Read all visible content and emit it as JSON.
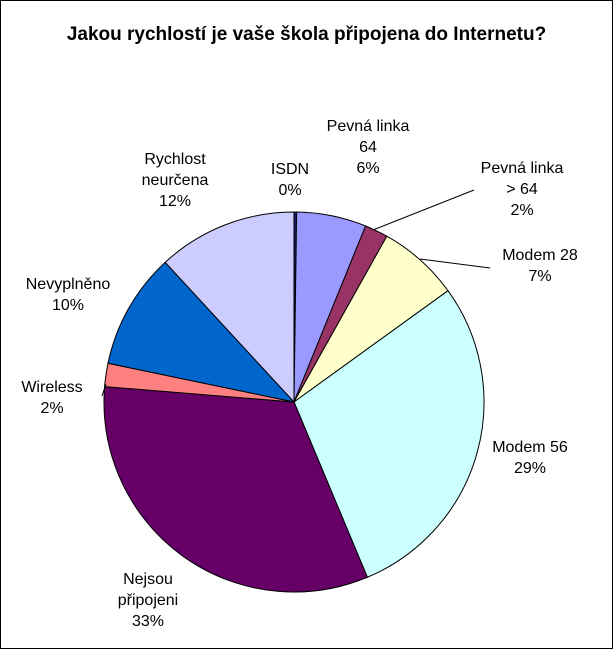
{
  "chart_data": {
    "type": "pie",
    "title": "Jakou rychlostí je vaše škola připojena do Internetu?",
    "slices": [
      {
        "label": [
          "ISDN"
        ],
        "value": 0,
        "pct": "0%",
        "color": "#1a1a66"
      },
      {
        "label": [
          "Pevná linka",
          "64"
        ],
        "value": 6,
        "pct": "6%",
        "color": "#9999ff"
      },
      {
        "label": [
          "Pevná linka",
          "> 64"
        ],
        "value": 2,
        "pct": "2%",
        "color": "#993366"
      },
      {
        "label": [
          "Modem 28"
        ],
        "value": 7,
        "pct": "7%",
        "color": "#ffffcc"
      },
      {
        "label": [
          "Modem 56"
        ],
        "value": 29,
        "pct": "29%",
        "color": "#ccffff"
      },
      {
        "label": [
          "Nejsou",
          "připojeni"
        ],
        "value": 33,
        "pct": "33%",
        "color": "#660066"
      },
      {
        "label": [
          "Wireless"
        ],
        "value": 2,
        "pct": "2%",
        "color": "#ff8080"
      },
      {
        "label": [
          "Nevyplněno"
        ],
        "value": 10,
        "pct": "10%",
        "color": "#0066cc"
      },
      {
        "label": [
          "Rychlost",
          "neurčena"
        ],
        "value": 12,
        "pct": "12%",
        "color": "#ccccff"
      }
    ]
  }
}
